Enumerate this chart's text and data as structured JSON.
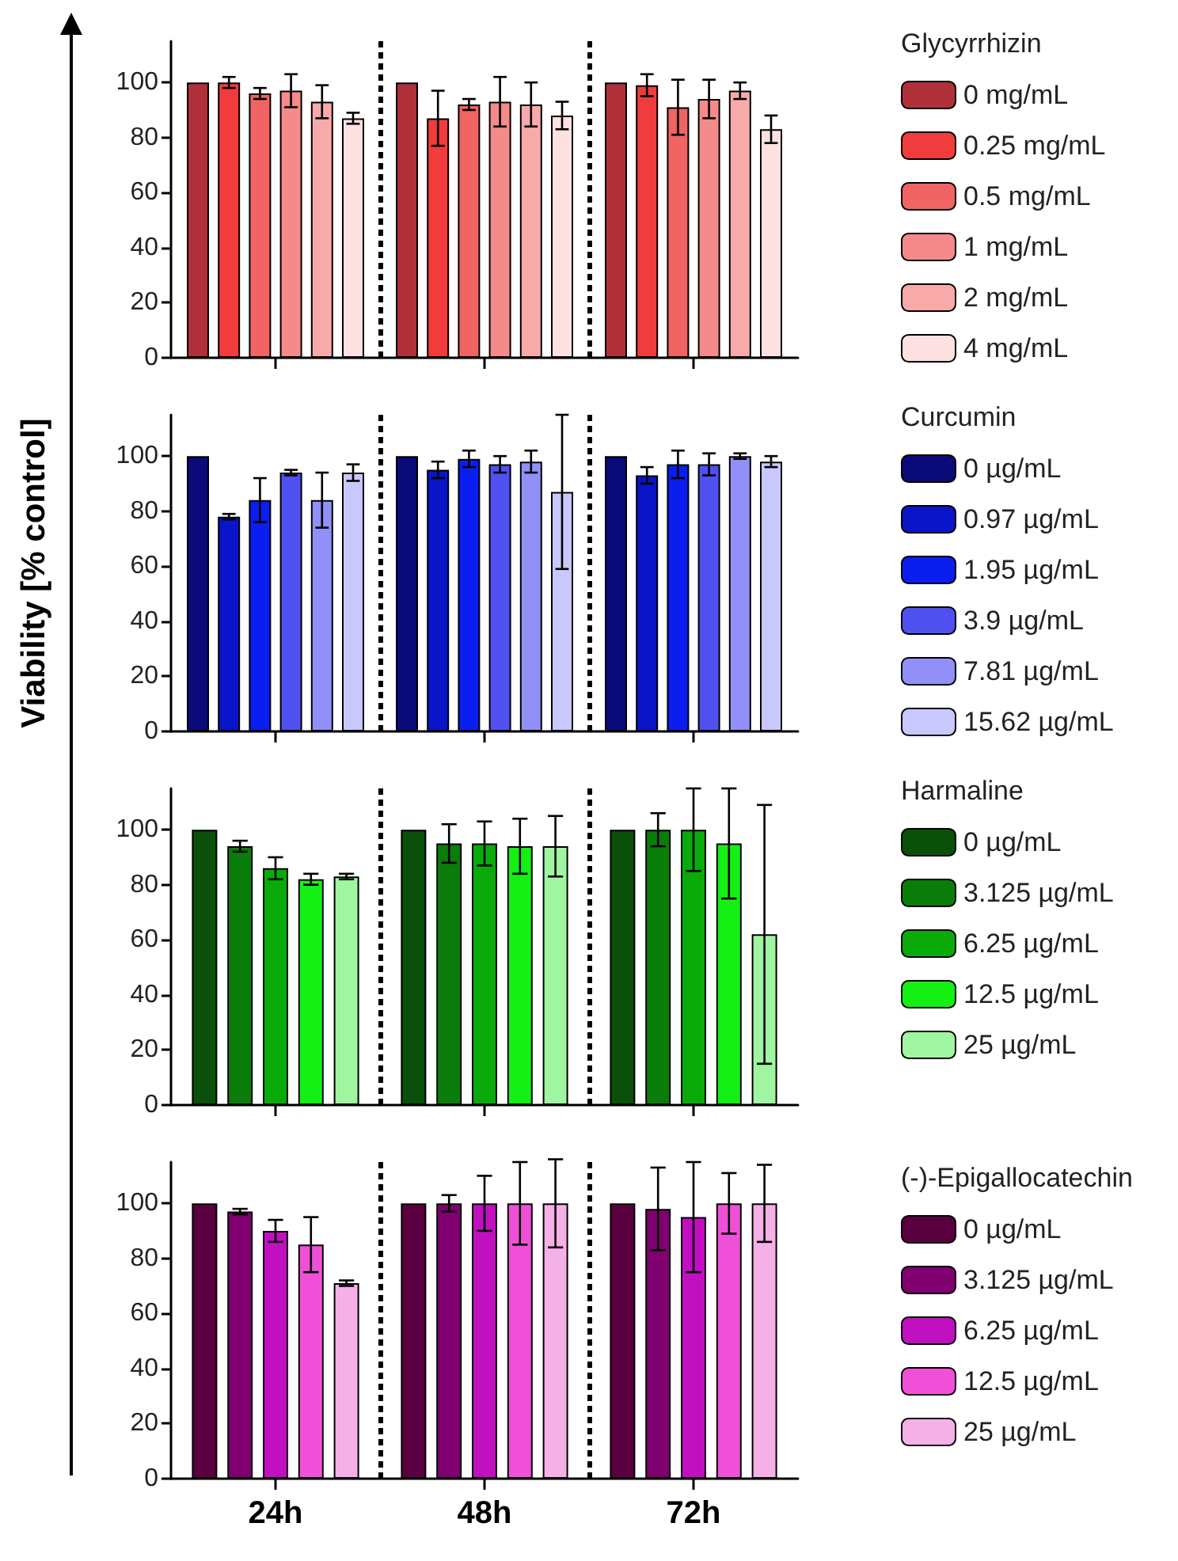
{
  "chart_data": [
    {
      "type": "bar",
      "legend_title": "Glycyrrhizin",
      "categories": [
        null,
        null,
        null
      ],
      "ylim": [
        0,
        115
      ],
      "yticks": [
        0,
        20,
        40,
        60,
        80,
        100
      ],
      "grid": "x",
      "legend": "right",
      "tick_labels": "y",
      "series": [
        {
          "name": "0 mg/mL",
          "color": "#b0303a",
          "values": [
            100,
            100,
            100
          ],
          "errors": [
            null,
            null,
            null
          ]
        },
        {
          "name": "0.25 mg/mL",
          "color": "#f03c3c",
          "values": [
            100,
            87,
            99
          ],
          "errors": [
            2,
            10,
            4
          ]
        },
        {
          "name": "0.5 mg/mL",
          "color": "#f06464",
          "values": [
            96,
            92,
            91
          ],
          "errors": [
            2,
            2,
            10
          ]
        },
        {
          "name": "1 mg/mL",
          "color": "#f48a8a",
          "values": [
            97,
            93,
            94
          ],
          "errors": [
            6,
            9,
            7
          ]
        },
        {
          "name": "2 mg/mL",
          "color": "#f8aaaa",
          "values": [
            93,
            92,
            97
          ],
          "errors": [
            6,
            8,
            3
          ]
        },
        {
          "name": "4 mg/mL",
          "color": "#fde0e0",
          "values": [
            87,
            88,
            83
          ],
          "errors": [
            2,
            5,
            5
          ]
        }
      ]
    },
    {
      "type": "bar",
      "ylabel": "Viability [% control]",
      "legend_title": "Curcumin",
      "categories": [
        null,
        null,
        null
      ],
      "ylim": [
        0,
        115
      ],
      "yticks": [
        0,
        20,
        40,
        60,
        80,
        100
      ],
      "grid": "x",
      "legend": "right",
      "tick_labels": "y",
      "series": [
        {
          "name": "0 µg/mL",
          "color": "#0a0a78",
          "values": [
            100,
            100,
            100
          ],
          "errors": [
            null,
            null,
            null
          ]
        },
        {
          "name": "0.97 µg/mL",
          "color": "#0a14c8",
          "values": [
            78,
            95,
            93
          ],
          "errors": [
            1,
            3,
            3
          ]
        },
        {
          "name": "1.95 µg/mL",
          "color": "#0a1ef0",
          "values": [
            84,
            99,
            97
          ],
          "errors": [
            8,
            3,
            5
          ]
        },
        {
          "name": "3.9 µg/mL",
          "color": "#5050f0",
          "values": [
            94,
            97,
            97
          ],
          "errors": [
            1,
            3,
            4
          ]
        },
        {
          "name": "7.81 µg/mL",
          "color": "#9090f8",
          "values": [
            84,
            98,
            100
          ],
          "errors": [
            10,
            4,
            1
          ]
        },
        {
          "name": "15.62 µg/mL",
          "color": "#c8c8fc",
          "values": [
            94,
            87,
            98
          ],
          "errors": [
            3,
            28,
            2
          ]
        }
      ]
    },
    {
      "type": "bar",
      "legend_title": "Harmaline",
      "categories": [
        null,
        null,
        null
      ],
      "ylim": [
        0,
        115
      ],
      "yticks": [
        0,
        20,
        40,
        60,
        80,
        100
      ],
      "grid": "x",
      "legend": "right",
      "tick_labels": "y",
      "series": [
        {
          "name": "0 µg/mL",
          "color": "#0a500a",
          "values": [
            100,
            100,
            100
          ],
          "errors": [
            null,
            null,
            null
          ]
        },
        {
          "name": "3.125 µg/mL",
          "color": "#0a7d0a",
          "values": [
            94,
            95,
            100
          ],
          "errors": [
            2,
            7,
            6
          ]
        },
        {
          "name": "6.25 µg/mL",
          "color": "#0aaa0a",
          "values": [
            86,
            95,
            100
          ],
          "errors": [
            4,
            8,
            15
          ]
        },
        {
          "name": "12.5 µg/mL",
          "color": "#14f014",
          "values": [
            82,
            94,
            95
          ],
          "errors": [
            2,
            10,
            20
          ]
        },
        {
          "name": "25 µg/mL",
          "color": "#a0f5a0",
          "values": [
            83,
            94,
            62
          ],
          "errors": [
            1,
            11,
            47
          ]
        }
      ]
    },
    {
      "type": "bar",
      "legend_title": "(-)-Epigallocatechin",
      "categories": [
        "24h",
        "48h",
        "72h"
      ],
      "ylim": [
        0,
        115
      ],
      "yticks": [
        0,
        20,
        40,
        60,
        80,
        100
      ],
      "grid": "x",
      "legend": "right",
      "series": [
        {
          "name": "0 µg/mL",
          "color": "#5a0040",
          "values": [
            100,
            100,
            100
          ],
          "errors": [
            null,
            null,
            null
          ]
        },
        {
          "name": "3.125 µg/mL",
          "color": "#800070",
          "values": [
            97,
            100,
            98
          ],
          "errors": [
            1,
            3,
            15
          ]
        },
        {
          "name": "6.25 µg/mL",
          "color": "#c010c0",
          "values": [
            90,
            100,
            95
          ],
          "errors": [
            4,
            10,
            20
          ]
        },
        {
          "name": "12.5 µg/mL",
          "color": "#f050d8",
          "values": [
            85,
            100,
            100
          ],
          "errors": [
            10,
            15,
            11
          ]
        },
        {
          "name": "25 µg/mL",
          "color": "#f5b0e8",
          "values": [
            71,
            100,
            100
          ],
          "errors": [
            1,
            16,
            14
          ]
        }
      ]
    }
  ]
}
